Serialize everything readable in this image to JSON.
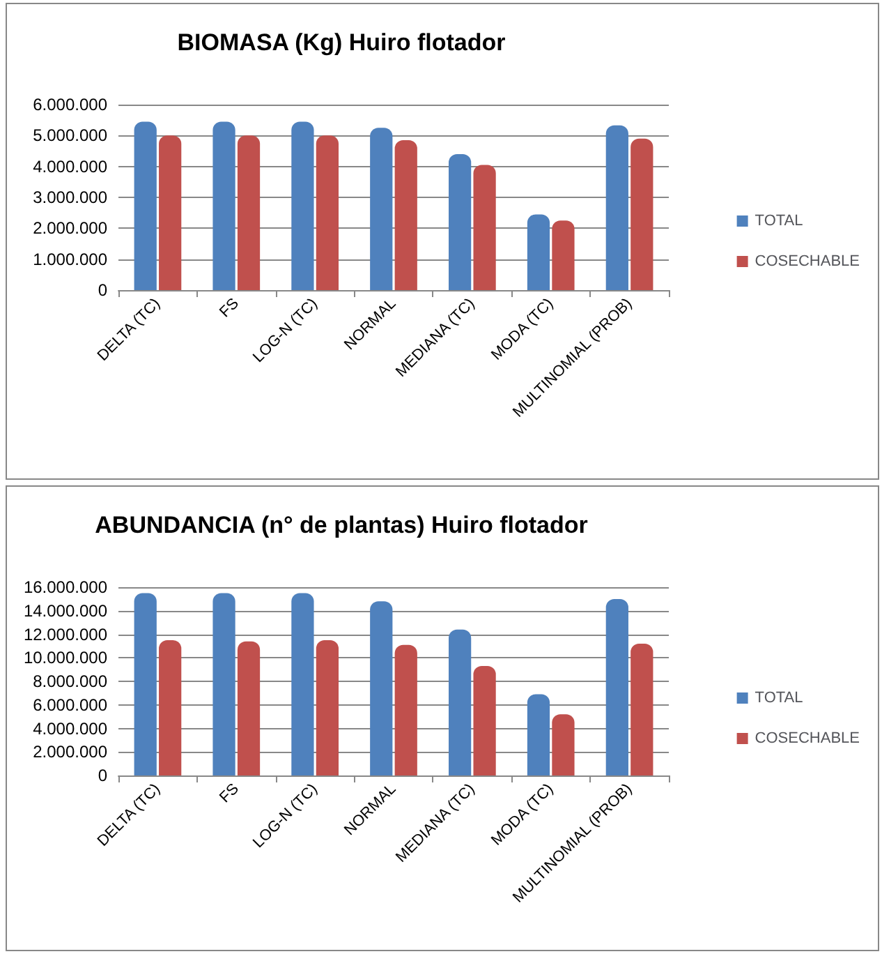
{
  "chart_data": [
    {
      "type": "bar",
      "title": "BIOMASA (Kg) Huiro flotador",
      "categories": [
        "DELTA (TC)",
        "FS",
        "LOG-N (TC)",
        "NORMAL",
        "MEDIANA (TC)",
        "MODA (TC)",
        "MULTINOMIAL (PROB)"
      ],
      "series": [
        {
          "name": "TOTAL",
          "color": "#4f81bd",
          "values": [
            5450000,
            5450000,
            5450000,
            5250000,
            4400000,
            2450000,
            5330000
          ]
        },
        {
          "name": "COSECHABLE",
          "color": "#c0504d",
          "values": [
            5000000,
            5000000,
            5000000,
            4850000,
            4050000,
            2250000,
            4900000
          ]
        }
      ],
      "ylim": [
        0,
        6000000
      ],
      "yticks": [
        {
          "value": 0,
          "label": "0"
        },
        {
          "value": 1000000,
          "label": "1.000.000"
        },
        {
          "value": 2000000,
          "label": "2.000.000"
        },
        {
          "value": 3000000,
          "label": "3.000.000"
        },
        {
          "value": 4000000,
          "label": "4.000.000"
        },
        {
          "value": 5000000,
          "label": "5.000.000"
        },
        {
          "value": 6000000,
          "label": "6.000.000"
        }
      ],
      "grid": "y",
      "legend": "right"
    },
    {
      "type": "bar",
      "title": "ABUNDANCIA (n° de plantas) Huiro flotador",
      "categories": [
        "DELTA (TC)",
        "FS",
        "LOG-N (TC)",
        "NORMAL",
        "MEDIANA (TC)",
        "MODA (TC)",
        "MULTINOMIAL (PROB)"
      ],
      "series": [
        {
          "name": "TOTAL",
          "color": "#4f81bd",
          "values": [
            15500000,
            15500000,
            15500000,
            14800000,
            12400000,
            6900000,
            15000000
          ]
        },
        {
          "name": "COSECHABLE",
          "color": "#c0504d",
          "values": [
            11500000,
            11400000,
            11500000,
            11100000,
            9300000,
            5200000,
            11200000
          ]
        }
      ],
      "ylim": [
        0,
        16000000
      ],
      "yticks": [
        {
          "value": 0,
          "label": "0"
        },
        {
          "value": 2000000,
          "label": "2.000.000"
        },
        {
          "value": 4000000,
          "label": "4.000.000"
        },
        {
          "value": 6000000,
          "label": "6.000.000"
        },
        {
          "value": 8000000,
          "label": "8.000.000"
        },
        {
          "value": 10000000,
          "label": "10.000.000"
        },
        {
          "value": 12000000,
          "label": "12.000.000"
        },
        {
          "value": 14000000,
          "label": "14.000.000"
        },
        {
          "value": 16000000,
          "label": "16.000.000"
        }
      ],
      "grid": "y",
      "legend": "right"
    }
  ]
}
